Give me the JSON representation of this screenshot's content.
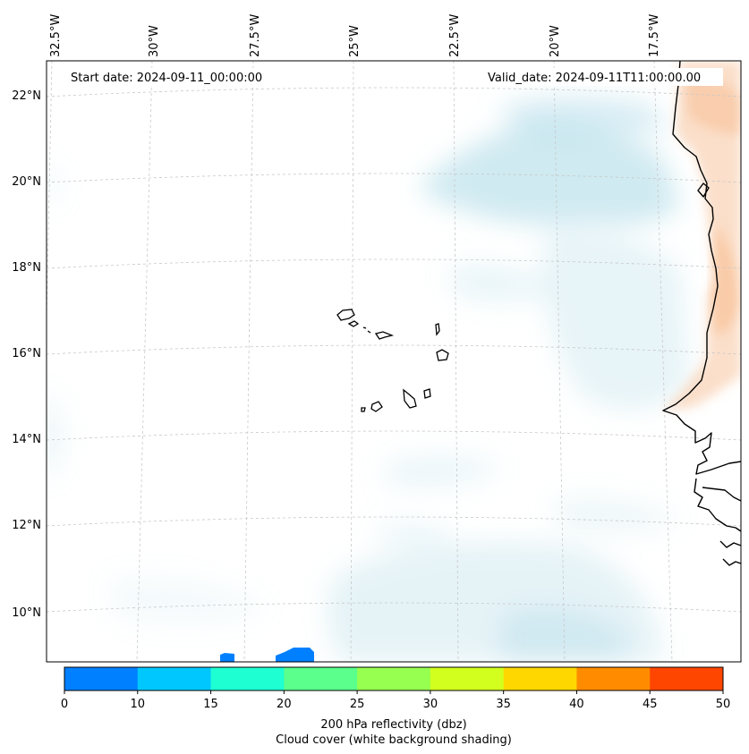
{
  "map": {
    "start_label": "Start date: 2024-09-11_00:00:00",
    "valid_label": "Valid_date: 2024-09-11T11:00:00.00",
    "lon_labels": [
      "32.5°W",
      "30°W",
      "27.5°W",
      "25°W",
      "22.5°W",
      "20°W",
      "17.5°W"
    ],
    "lat_labels": [
      "22°N",
      "20°N",
      "18°N",
      "16°N",
      "14°N",
      "12°N",
      "10°N"
    ]
  },
  "colorbar": {
    "ticks": [
      "0",
      "10",
      "15",
      "20",
      "25",
      "30",
      "35",
      "40",
      "45",
      "50"
    ],
    "colors": [
      "#0080ff",
      "#00c8ff",
      "#1effd2",
      "#5aff8c",
      "#96ff50",
      "#d2ff1e",
      "#ffd700",
      "#ff8c00",
      "#ff4600"
    ],
    "label_line1": "200 hPa reflectivity (dbz)",
    "label_line2": "Cloud cover (white background shading)"
  },
  "colors": {
    "cloud_shading": "#a8d8e6",
    "land_shading": "#f7b98a",
    "coastline": "#000000",
    "reflectivity_patch": "#0080ff"
  }
}
